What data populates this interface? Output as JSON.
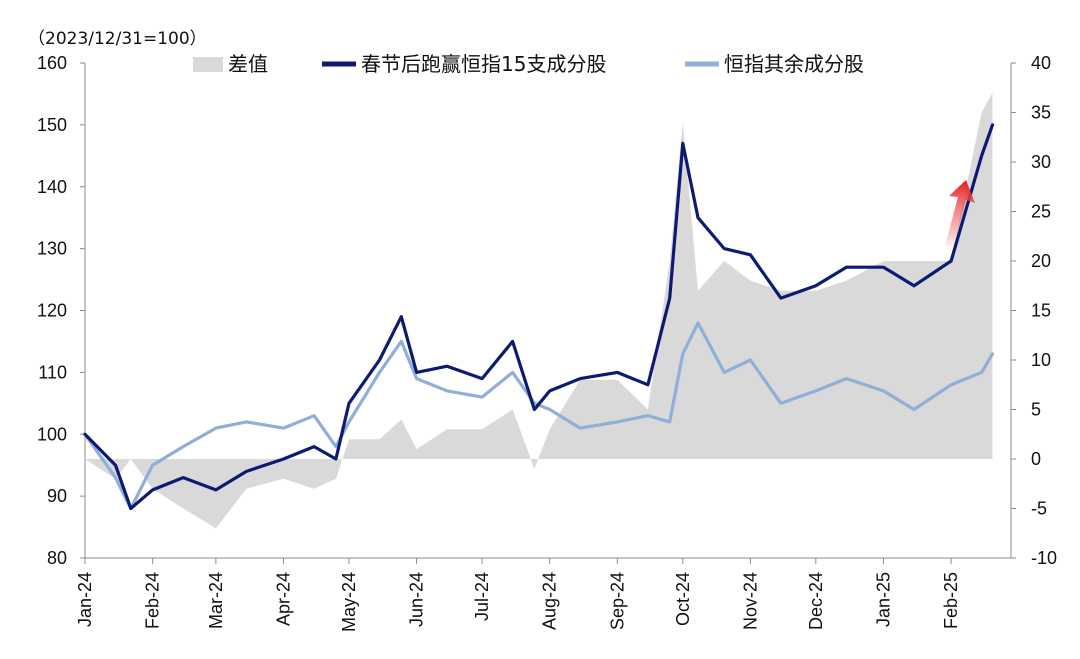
{
  "chart_data": {
    "type": "line",
    "subtitle": "（2023/12/31=100）",
    "left_axis": {
      "ylim": [
        80,
        160
      ],
      "ticks": [
        80,
        90,
        100,
        110,
        120,
        130,
        140,
        150,
        160
      ]
    },
    "right_axis": {
      "ylim": [
        -10,
        40
      ],
      "ticks": [
        -10,
        -5,
        0,
        5,
        10,
        15,
        20,
        25,
        30,
        35,
        40
      ]
    },
    "x_ticks": [
      "Jan-24",
      "Feb-24",
      "Mar-24",
      "Apr-24",
      "May-24",
      "Jun-24",
      "Jul-24",
      "Aug-24",
      "Sep-24",
      "Oct-24",
      "Nov-24",
      "Dec-24",
      "Jan-25",
      "Feb-25"
    ],
    "legend": [
      {
        "name": "差值",
        "color": "#d9d9d9",
        "kind": "area"
      },
      {
        "name": "春节后跑赢恒指15支成分股",
        "color": "#0c1a72",
        "kind": "line"
      },
      {
        "name": "恒指其余成分股",
        "color": "#8faed8",
        "kind": "line"
      }
    ],
    "axis_label_colors": {
      "negative_right": "#cc0000"
    },
    "x": [
      "2024-01-01",
      "2024-01-15",
      "2024-01-22",
      "2024-02-01",
      "2024-02-15",
      "2024-03-01",
      "2024-03-15",
      "2024-04-01",
      "2024-04-15",
      "2024-04-25",
      "2024-05-01",
      "2024-05-15",
      "2024-05-25",
      "2024-06-01",
      "2024-06-15",
      "2024-07-01",
      "2024-07-15",
      "2024-07-25",
      "2024-08-01",
      "2024-08-15",
      "2024-09-01",
      "2024-09-15",
      "2024-09-25",
      "2024-10-01",
      "2024-10-08",
      "2024-10-20",
      "2024-11-01",
      "2024-11-15",
      "2024-12-01",
      "2024-12-15",
      "2025-01-01",
      "2025-01-15",
      "2025-02-01",
      "2025-02-15",
      "2025-02-20"
    ],
    "series": [
      {
        "name": "春节后跑赢恒指15支成分股",
        "axis": "left",
        "values": [
          100,
          95,
          88,
          91,
          93,
          91,
          94,
          96,
          98,
          96,
          105,
          112,
          119,
          110,
          111,
          109,
          115,
          104,
          107,
          109,
          110,
          108,
          122,
          147,
          135,
          130,
          129,
          122,
          124,
          127,
          127,
          124,
          128,
          145,
          150
        ]
      },
      {
        "name": "恒指其余成分股",
        "axis": "left",
        "values": [
          100,
          93,
          88,
          95,
          98,
          101,
          102,
          101,
          103,
          98,
          102,
          110,
          115,
          109,
          107,
          106,
          110,
          105,
          104,
          101,
          102,
          103,
          102,
          113,
          118,
          110,
          112,
          105,
          107,
          109,
          107,
          104,
          108,
          110,
          113
        ]
      },
      {
        "name": "差值",
        "axis": "right",
        "values": [
          0,
          -2,
          0,
          -3,
          -5,
          -7,
          -3,
          -2,
          -3,
          -2,
          2,
          2,
          4,
          1,
          3,
          3,
          5,
          -1,
          3,
          8,
          8,
          5,
          20,
          34,
          17,
          20,
          18,
          17,
          17,
          18,
          20,
          20,
          20,
          35,
          37
        ]
      }
    ]
  }
}
